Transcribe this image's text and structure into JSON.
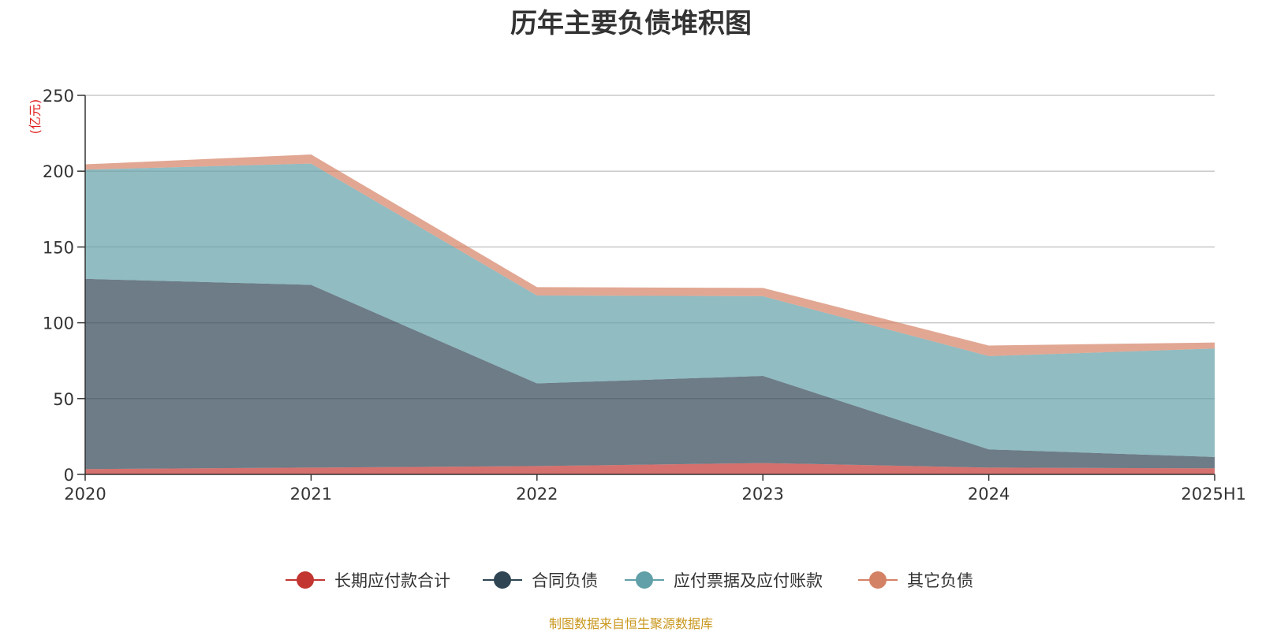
{
  "chart_data": {
    "type": "area",
    "stacked": true,
    "title": "历年主要负债堆积图",
    "unit_label": "(亿元)",
    "categories": [
      "2020",
      "2021",
      "2022",
      "2023",
      "2024",
      "2025H1"
    ],
    "ylim": [
      0,
      250
    ],
    "yticks": [
      0,
      50,
      100,
      150,
      200,
      250
    ],
    "grid": true,
    "legend_position": "bottom",
    "series": [
      {
        "name": "长期应付款合计",
        "color": "#c23531",
        "values": [
          3.5,
          4.5,
          5.5,
          7.5,
          4.5,
          4.0
        ]
      },
      {
        "name": "合同负债",
        "color": "#2f4554",
        "values": [
          125.5,
          120.5,
          54.5,
          57.5,
          12.0,
          7.5
        ]
      },
      {
        "name": "应付票据及应付账款",
        "color": "#61a0a8",
        "values": [
          72.0,
          80.0,
          58.0,
          52.5,
          61.5,
          71.5
        ]
      },
      {
        "name": "其它负债",
        "color": "#d48265",
        "values": [
          3.5,
          6.0,
          5.5,
          5.5,
          7.0,
          4.0
        ]
      }
    ]
  },
  "source_note": "制图数据来自恒生聚源数据库"
}
